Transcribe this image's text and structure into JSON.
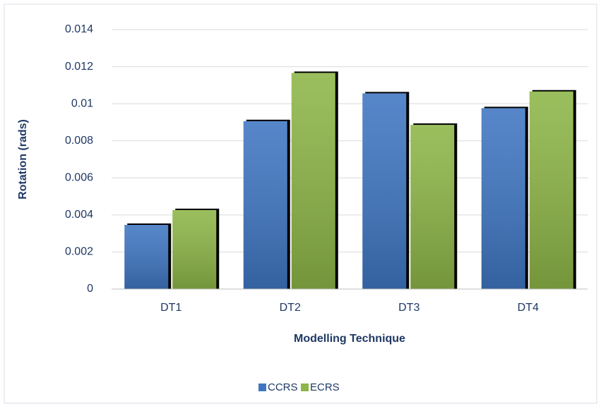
{
  "chart_data": {
    "type": "bar",
    "categories": [
      "DT1",
      "DT2",
      "DT3",
      "DT4"
    ],
    "series": [
      {
        "name": "CCRS",
        "color": "#3f76c2",
        "values": [
          0.0035,
          0.0091,
          0.0106,
          0.0098
        ]
      },
      {
        "name": "ECRS",
        "color": "#8db547",
        "values": [
          0.0043,
          0.0117,
          0.0089,
          0.0107
        ]
      }
    ],
    "y_label": "Rotation (rads)",
    "x_label": "Modelling Technique",
    "ylim": [
      0,
      0.014
    ],
    "yticks": [
      0,
      0.002,
      0.004,
      0.006,
      0.008,
      0.01,
      0.012,
      0.014
    ],
    "grid": true,
    "legend": "bottom"
  }
}
